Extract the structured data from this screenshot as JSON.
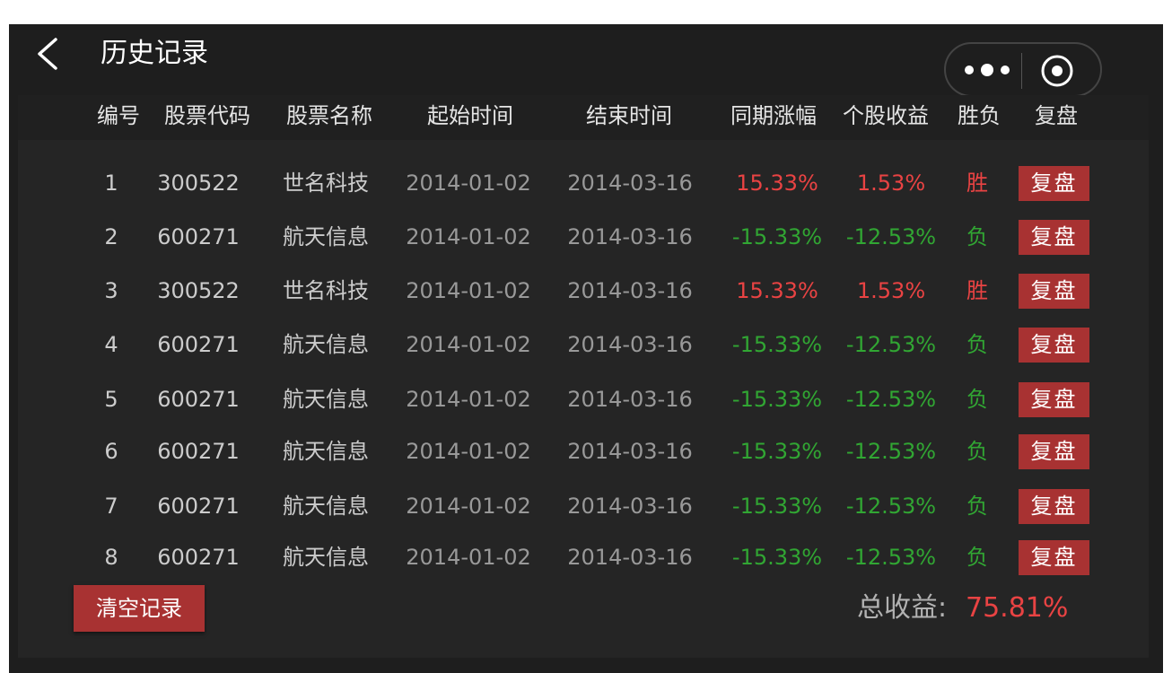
{
  "header": {
    "title": "历史记录"
  },
  "table": {
    "columns": [
      "编号",
      "股票代码",
      "股票名称",
      "起始时间",
      "结束时间",
      "同期涨幅",
      "个股收益",
      "胜负",
      "复盘"
    ],
    "rows": [
      {
        "id": "1",
        "code": "300522",
        "name": "世名科技",
        "start": "2014-01-02",
        "end": "2014-03-16",
        "period": "15.33%",
        "gain": "1.53%",
        "result": "胜",
        "trend": "up",
        "action": "复盘"
      },
      {
        "id": "2",
        "code": "600271",
        "name": "航天信息",
        "start": "2014-01-02",
        "end": "2014-03-16",
        "period": "-15.33%",
        "gain": "-12.53%",
        "result": "负",
        "trend": "down",
        "action": "复盘"
      },
      {
        "id": "3",
        "code": "300522",
        "name": "世名科技",
        "start": "2014-01-02",
        "end": "2014-03-16",
        "period": "15.33%",
        "gain": "1.53%",
        "result": "胜",
        "trend": "up",
        "action": "复盘"
      },
      {
        "id": "4",
        "code": "600271",
        "name": "航天信息",
        "start": "2014-01-02",
        "end": "2014-03-16",
        "period": "-15.33%",
        "gain": "-12.53%",
        "result": "负",
        "trend": "down",
        "action": "复盘"
      },
      {
        "id": "5",
        "code": "600271",
        "name": "航天信息",
        "start": "2014-01-02",
        "end": "2014-03-16",
        "period": "-15.33%",
        "gain": "-12.53%",
        "result": "负",
        "trend": "down",
        "action": "复盘"
      },
      {
        "id": "6",
        "code": "600271",
        "name": "航天信息",
        "start": "2014-01-02",
        "end": "2014-03-16",
        "period": "-15.33%",
        "gain": "-12.53%",
        "result": "负",
        "trend": "down",
        "action": "复盘"
      },
      {
        "id": "7",
        "code": "600271",
        "name": "航天信息",
        "start": "2014-01-02",
        "end": "2014-03-16",
        "period": "-15.33%",
        "gain": "-12.53%",
        "result": "负",
        "trend": "down",
        "action": "复盘"
      },
      {
        "id": "8",
        "code": "600271",
        "name": "航天信息",
        "start": "2014-01-02",
        "end": "2014-03-16",
        "period": "-15.33%",
        "gain": "-12.53%",
        "result": "负",
        "trend": "down",
        "action": "复盘"
      }
    ]
  },
  "footer": {
    "clear_label": "清空记录",
    "total_label": "总收益:",
    "total_value": "75.81%"
  },
  "icons": {
    "back": "chevron-left-icon",
    "more": "more-dots-icon",
    "close": "target-circle-icon"
  },
  "colors": {
    "title": "#ffffff",
    "header_text": "#e5e5e5",
    "cell_text": "#cccccc",
    "date_text": "#999999",
    "up": "#e94343",
    "down": "#31a633",
    "total_label": "#b2b2b2",
    "total_value": "#e94343"
  }
}
